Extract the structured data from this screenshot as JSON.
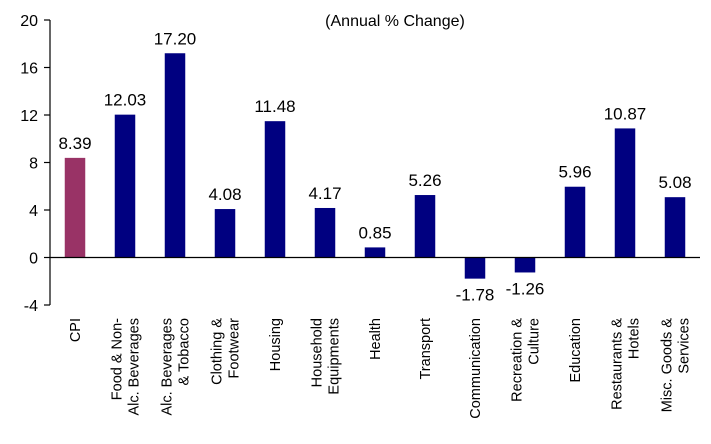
{
  "chart_data": {
    "type": "bar",
    "title": "(Annual % Change)",
    "xlabel": "",
    "ylabel": "",
    "ylim": [
      -4,
      20
    ],
    "yticks": [
      -4,
      0,
      4,
      8,
      12,
      16,
      20
    ],
    "grid": false,
    "categories": [
      [
        "CPI"
      ],
      [
        "Food & Non-",
        "Alc. Beverages"
      ],
      [
        "Alc. Beverages",
        "& Tobacco"
      ],
      [
        "Clothing &",
        "Footwear"
      ],
      [
        "Housing"
      ],
      [
        "Household",
        "Equipments"
      ],
      [
        "Health"
      ],
      [
        "Transport"
      ],
      [
        "Communication"
      ],
      [
        "Recreation &",
        "Culture"
      ],
      [
        "Education"
      ],
      [
        "Restaurants &",
        "Hotels"
      ],
      [
        "Misc. Goods &",
        "Services"
      ]
    ],
    "values": [
      8.39,
      12.03,
      17.2,
      4.08,
      11.48,
      4.17,
      0.85,
      5.26,
      -1.78,
      -1.26,
      5.96,
      10.87,
      5.08
    ],
    "data_labels": [
      "8.39",
      "12.03",
      "17.20",
      "4.08",
      "11.48",
      "4.17",
      "0.85",
      "5.26",
      "-1.78",
      "-1.26",
      "5.96",
      "10.87",
      "5.08"
    ],
    "bar_colors": [
      "#993366",
      "#000080",
      "#000080",
      "#000080",
      "#000080",
      "#000080",
      "#000080",
      "#000080",
      "#000080",
      "#000080",
      "#000080",
      "#000080",
      "#000080"
    ]
  }
}
